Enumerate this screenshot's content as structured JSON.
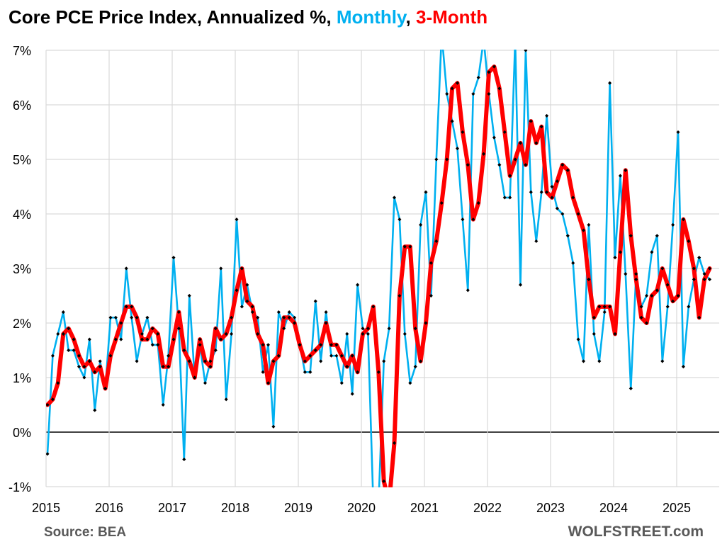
{
  "title": {
    "prefix": "Core PCE Price Index, Annualized %, ",
    "monthly": "Monthly",
    "sep": ", ",
    "three": "3-Month"
  },
  "footer": {
    "source": "Source: BEA",
    "brand": "WOLFSTREET.com"
  },
  "colors": {
    "monthly": "#00b0f0",
    "three_month": "#ff0000",
    "points": "#000000",
    "grid": "#d9d9d9",
    "zero_line": "#000000",
    "text": "#000000",
    "footer_text": "#595959"
  },
  "chart_data": {
    "type": "line",
    "x_start": "2015-01",
    "x_end": "2025-08",
    "x_tick_labels": [
      "2015",
      "2016",
      "2017",
      "2018",
      "2019",
      "2020",
      "2021",
      "2022",
      "2023",
      "2024",
      "2025"
    ],
    "y_tick_values": [
      -1,
      0,
      1,
      2,
      3,
      4,
      5,
      6,
      7
    ],
    "y_tick_labels": [
      "-1%",
      "0%",
      "1%",
      "2%",
      "3%",
      "4%",
      "5%",
      "6%",
      "7%"
    ],
    "ylim": [
      -1,
      7
    ],
    "grid": true,
    "series": [
      {
        "name": "Monthly",
        "values": [
          -0.4,
          1.4,
          1.8,
          2.2,
          1.5,
          1.5,
          1.2,
          1.0,
          1.7,
          0.4,
          1.3,
          0.8,
          2.1,
          2.1,
          1.7,
          3.0,
          2.1,
          1.3,
          1.8,
          2.1,
          1.6,
          1.6,
          0.5,
          1.4,
          3.2,
          1.9,
          -0.5,
          2.5,
          1.0,
          1.6,
          0.9,
          1.3,
          1.5,
          3.0,
          0.6,
          1.8,
          3.9,
          2.3,
          2.7,
          2.2,
          2.1,
          1.1,
          1.6,
          0.1,
          2.2,
          1.9,
          2.2,
          2.1,
          1.6,
          1.1,
          1.1,
          2.4,
          1.3,
          2.2,
          1.4,
          1.4,
          0.9,
          1.8,
          0.7,
          2.7,
          1.9,
          1.8,
          -1.3,
          -1.3,
          1.3,
          1.9,
          4.3,
          3.9,
          1.8,
          0.9,
          1.2,
          3.8,
          4.4,
          2.5,
          5.0,
          7.3,
          6.2,
          5.7,
          5.2,
          3.9,
          2.6,
          6.2,
          6.5,
          7.2,
          6.2,
          5.4,
          4.9,
          4.3,
          4.3,
          7.2,
          2.7,
          7.0,
          4.4,
          3.5,
          4.4,
          5.8,
          4.5,
          4.1,
          4.0,
          3.6,
          3.1,
          1.7,
          1.3,
          3.8,
          1.8,
          1.3,
          2.2,
          6.4,
          3.2,
          4.7,
          2.9,
          0.8,
          2.9,
          2.3,
          2.5,
          3.3,
          3.6,
          1.3,
          2.3,
          3.8,
          5.5,
          1.2,
          2.3,
          2.8,
          3.2,
          2.9,
          2.8
        ]
      },
      {
        "name": "3-Month",
        "values": [
          0.5,
          0.6,
          0.9,
          1.8,
          1.9,
          1.7,
          1.4,
          1.2,
          1.3,
          1.1,
          1.2,
          0.8,
          1.4,
          1.7,
          2.0,
          2.3,
          2.3,
          2.1,
          1.7,
          1.7,
          1.9,
          1.8,
          1.2,
          1.2,
          1.7,
          2.2,
          1.5,
          1.3,
          1.0,
          1.7,
          1.3,
          1.2,
          1.9,
          1.7,
          1.8,
          2.1,
          2.6,
          3.0,
          2.4,
          2.3,
          1.8,
          1.6,
          0.9,
          1.3,
          1.4,
          2.1,
          2.1,
          2.0,
          1.6,
          1.3,
          1.4,
          1.5,
          1.6,
          2.0,
          1.6,
          1.6,
          1.4,
          1.2,
          1.4,
          1.1,
          1.8,
          1.9,
          2.3,
          1.1,
          -0.9,
          -1.3,
          -0.2,
          2.5,
          3.4,
          3.4,
          1.9,
          1.3,
          2.0,
          3.1,
          3.5,
          4.2,
          5.0,
          6.3,
          6.4,
          5.5,
          4.9,
          3.9,
          4.2,
          5.1,
          6.6,
          6.7,
          6.3,
          5.5,
          4.7,
          5.0,
          5.3,
          4.9,
          5.7,
          5.3,
          5.6,
          4.4,
          4.3,
          4.6,
          4.9,
          4.8,
          4.3,
          4.0,
          3.7,
          2.8,
          2.1,
          2.3,
          2.3,
          2.3,
          1.8,
          3.3,
          4.8,
          3.6,
          2.8,
          2.1,
          2.0,
          2.5,
          2.6,
          3.0,
          2.7,
          2.4,
          2.5,
          3.9,
          3.5,
          3.0,
          2.1,
          2.8,
          3.0
        ]
      }
    ]
  }
}
